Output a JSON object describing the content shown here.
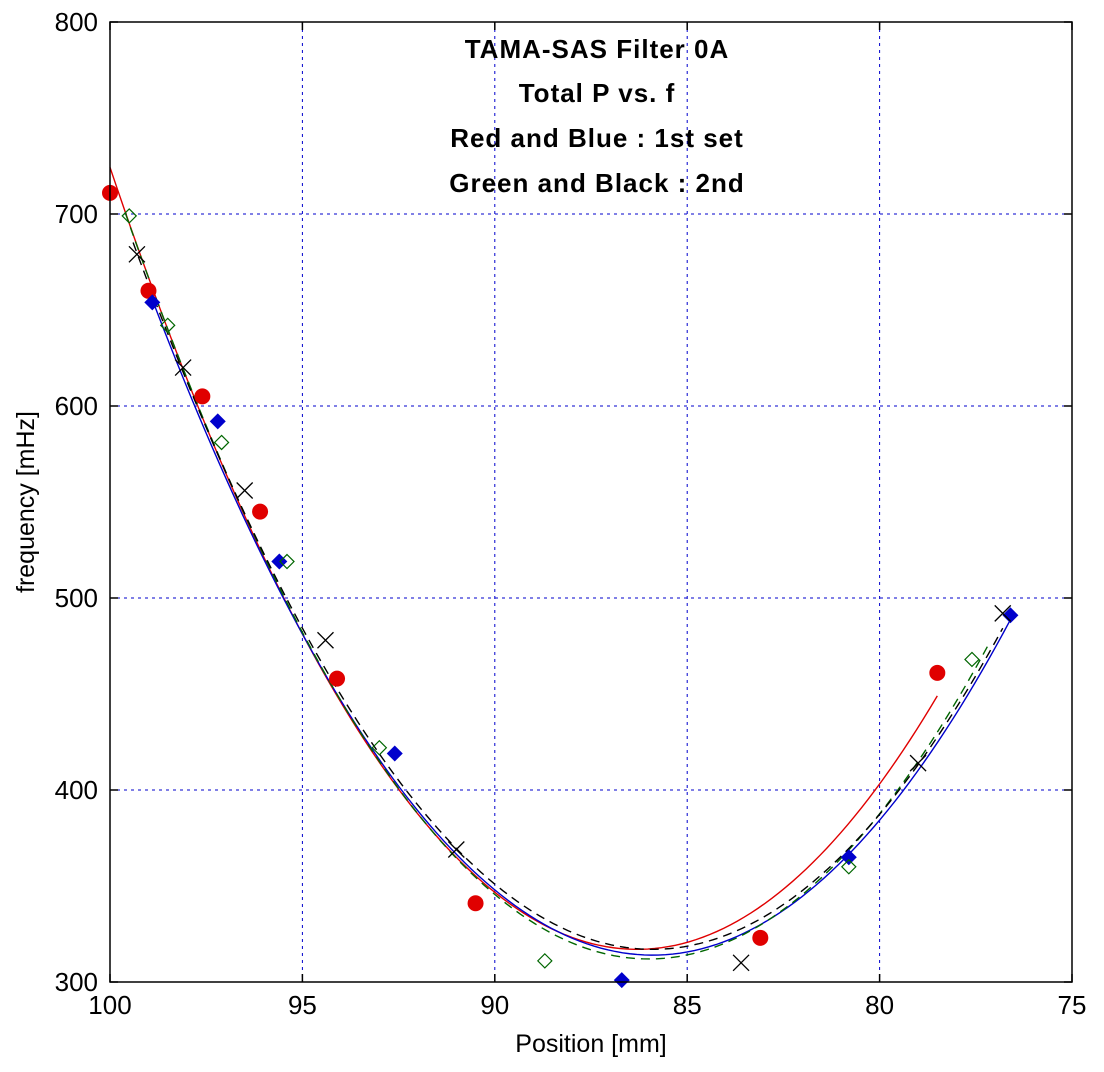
{
  "chart_data": {
    "type": "scatter",
    "title_lines": [
      "TAMA-SAS Filter 0A",
      "Total P vs. f",
      "Red and Blue : 1st set",
      "Green and Black : 2nd"
    ],
    "xlabel": "Position [mm]",
    "ylabel": "frequency [mHz]",
    "xlim": [
      100,
      75
    ],
    "ylim": [
      300,
      800
    ],
    "x_reversed": true,
    "x_ticks": [
      100,
      95,
      90,
      85,
      80,
      75
    ],
    "y_ticks": [
      300,
      400,
      500,
      600,
      700,
      800
    ],
    "grid": true,
    "colors": {
      "grid": "#0000cc",
      "red": "#e00000",
      "blue": "#0000cc",
      "green": "#006600",
      "black": "#000000"
    },
    "series": [
      {
        "marker": "circle",
        "color": "#e00000",
        "x": [
          100.0,
          99.0,
          97.6,
          96.1,
          94.1,
          90.5,
          83.1,
          78.5
        ],
        "y": [
          711,
          660,
          605,
          545,
          458,
          341,
          323,
          461
        ]
      },
      {
        "marker": "diamond-filled",
        "color": "#0000cc",
        "x": [
          98.9,
          97.2,
          95.6,
          92.6,
          86.7,
          80.8,
          76.6
        ],
        "y": [
          654,
          592,
          519,
          419,
          301,
          365,
          491
        ]
      },
      {
        "marker": "diamond-open",
        "color": "#006600",
        "x": [
          99.5,
          98.5,
          97.1,
          95.4,
          93.0,
          88.7,
          80.8,
          77.6
        ],
        "y": [
          699,
          642,
          581,
          519,
          422,
          311,
          360,
          468
        ]
      },
      {
        "marker": "x",
        "color": "#000000",
        "x": [
          99.3,
          98.1,
          96.5,
          94.4,
          91.0,
          83.6,
          79.0,
          76.8
        ],
        "y": [
          679,
          620,
          556,
          478,
          369,
          310,
          414,
          492
        ]
      }
    ],
    "fits": [
      {
        "color": "#e00000",
        "style": "solid",
        "x_range": [
          100.0,
          78.5
        ],
        "vertex_x": 86.3,
        "vertex_y": 317,
        "a": 2.17
      },
      {
        "color": "#0000cc",
        "style": "solid",
        "x_range": [
          99.0,
          76.6
        ],
        "vertex_x": 85.9,
        "vertex_y": 314,
        "a": 2.02
      },
      {
        "color": "#006600",
        "style": "dashed",
        "x_range": [
          99.6,
          77.2
        ],
        "vertex_x": 86.0,
        "vertex_y": 312,
        "a": 2.1
      },
      {
        "color": "#000000",
        "style": "dashed",
        "x_range": [
          99.4,
          76.8
        ],
        "vertex_x": 85.9,
        "vertex_y": 317,
        "a": 2.02
      }
    ]
  }
}
